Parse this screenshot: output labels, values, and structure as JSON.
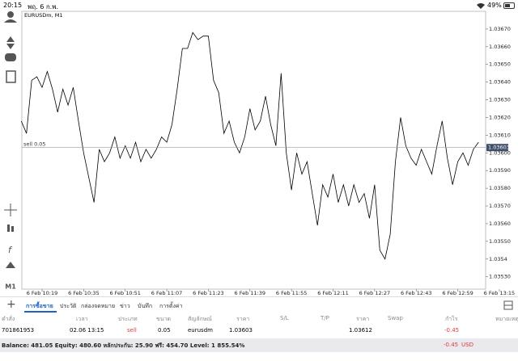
{
  "status_bar": {
    "time": "20:15",
    "date": "พฤ. 6 ก.พ.",
    "battery": "49%"
  },
  "toolbar": {
    "timeframe": "M1"
  },
  "chart_data": {
    "type": "line",
    "title": "EURUSDm, M1",
    "color": "#000000",
    "categories": [
      null,
      null,
      null,
      null,
      "6 Feb 10:19",
      null,
      null,
      null,
      null,
      null,
      null,
      null,
      "6 Feb 10:35",
      null,
      null,
      null,
      null,
      null,
      null,
      null,
      "6 Feb 10:51",
      null,
      null,
      null,
      null,
      null,
      null,
      null,
      "6 Feb 11:07",
      null,
      null,
      null,
      null,
      null,
      null,
      null,
      "6 Feb 11:23",
      null,
      null,
      null,
      null,
      null,
      null,
      null,
      "6 Feb 11:39",
      null,
      null,
      null,
      null,
      null,
      null,
      null,
      "6 Feb 11:55",
      null,
      null,
      null,
      null,
      null,
      null,
      null,
      "6 Feb 12:11",
      null,
      null,
      null,
      null,
      null,
      null,
      null,
      "6 Feb 12:27",
      null,
      null,
      null,
      null,
      null,
      null,
      null,
      "6 Feb 12:43",
      null,
      null,
      null,
      null,
      null,
      null,
      null,
      "6 Feb 12:59",
      null,
      null,
      null,
      null,
      null,
      null,
      null,
      "6 Feb 13:15"
    ],
    "values": [
      1.03618,
      1.03611,
      1.03641,
      1.03643,
      1.03637,
      1.03646,
      1.03636,
      1.03623,
      1.03636,
      1.03627,
      1.03637,
      1.03618,
      1.036,
      1.03586,
      1.03572,
      1.03602,
      1.03595,
      1.036,
      1.03609,
      1.03597,
      1.03604,
      1.03597,
      1.03606,
      1.03595,
      1.03602,
      1.03597,
      1.03602,
      1.03609,
      1.03606,
      1.03616,
      1.03636,
      1.03659,
      1.03659,
      1.03668,
      1.03664,
      1.03666,
      1.03666,
      1.03641,
      1.03634,
      1.03611,
      1.03618,
      1.03606,
      1.036,
      1.03609,
      1.03625,
      1.03613,
      1.03618,
      1.03632,
      1.03616,
      1.03604,
      1.03645,
      1.036,
      1.03579,
      1.036,
      1.03588,
      1.03595,
      1.03577,
      1.03559,
      1.03582,
      1.03575,
      1.03588,
      1.03572,
      1.03582,
      1.0357,
      1.03582,
      1.03572,
      1.03577,
      1.03563,
      1.03582,
      1.03545,
      1.0354,
      1.03554,
      1.03595,
      1.0362,
      1.03604,
      1.03597,
      1.03593,
      1.03602,
      1.03595,
      1.03588,
      1.03604,
      1.03618,
      1.03597,
      1.03582,
      1.03595,
      1.036,
      1.03593,
      1.03602,
      1.03606,
      null,
      null,
      null,
      null
    ],
    "ylim": [
      1.03523,
      1.0368
    ],
    "yticks": [
      {
        "value": 1.0353,
        "label": "1.03530"
      },
      1.0354,
      {
        "value": 1.0355,
        "label": "1.03550"
      },
      {
        "value": 1.0356,
        "label": "1.03560"
      },
      {
        "value": 1.0357,
        "label": "1.03570"
      },
      {
        "value": 1.0358,
        "label": "1.03580"
      },
      {
        "value": 1.0359,
        "label": "1.03590"
      },
      {
        "value": 1.036,
        "label": "1.03600"
      },
      {
        "value": 1.0361,
        "label": "1.03610"
      },
      {
        "value": 1.0362,
        "label": "1.03620"
      },
      {
        "value": 1.0363,
        "label": "1.03630"
      },
      {
        "value": 1.0364,
        "label": "1.03640"
      },
      {
        "value": 1.0365,
        "label": "1.03650"
      },
      {
        "value": 1.0366,
        "label": "1.03660"
      },
      {
        "value": 1.0367,
        "label": "1.03670"
      }
    ],
    "grid": false,
    "order_line": {
      "label": "sell 0.05",
      "value": 1.03603
    }
  },
  "tabs": {
    "items": [
      "การซื้อขาย",
      "ประวัติ",
      "กล่องจดหมาย",
      "ข่าว",
      "บันทึก",
      "การตั้งค่า"
    ]
  },
  "table": {
    "header": [
      "คำสั่ง",
      "เวลา",
      "ประเภท",
      "ขนาด",
      "สัญลักษณ์",
      "ราคา",
      "S/L",
      "T/P",
      "ราคา",
      "Swap",
      "กำไร",
      "หมายเหตุ"
    ],
    "rows": [
      {
        "order": "701861953",
        "time": "02.06 13:15",
        "type": "sell",
        "volume": "0.05",
        "symbol": "eurusdm",
        "price": "1.03603",
        "current_price": "1.03612",
        "profit": "-0.45"
      }
    ]
  },
  "footer": {
    "summary": "Balance: 481.05 Equity: 480.60 หลักประกัน: 25.90 ฟรี: 454.70 Level: 1 855.54%",
    "total_profit": "-0.45",
    "currency": "USD"
  }
}
